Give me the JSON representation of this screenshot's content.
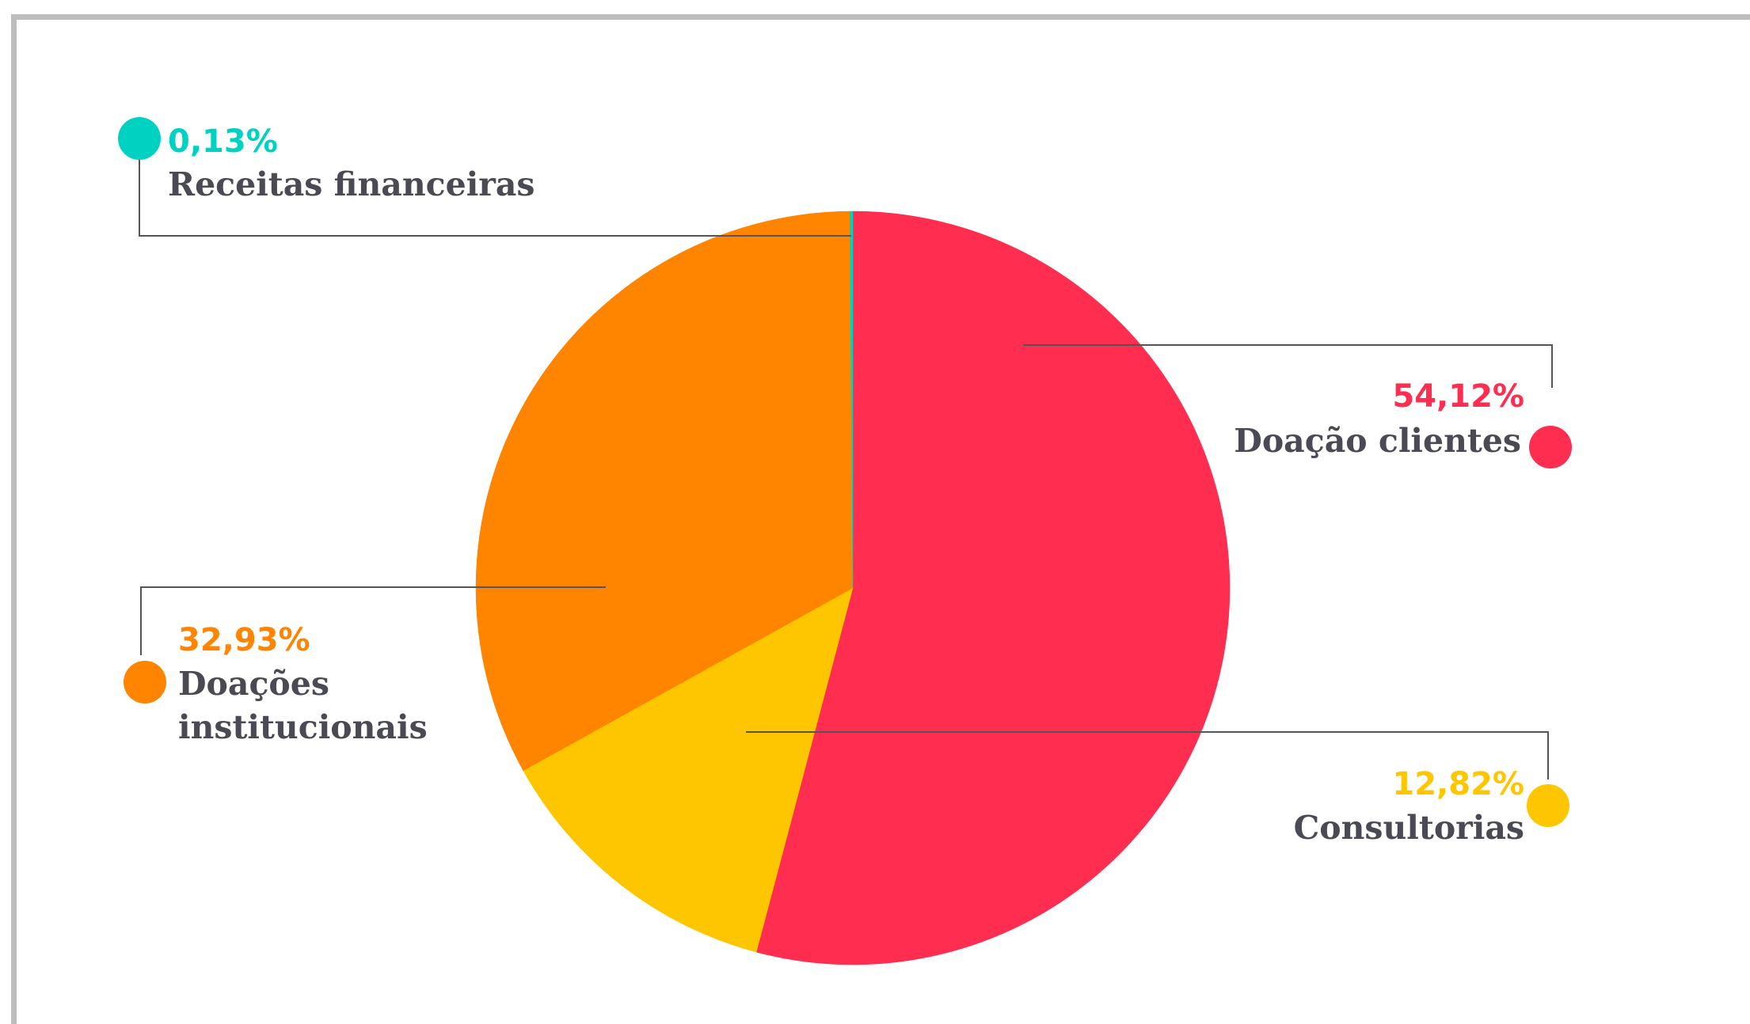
{
  "chart_data": {
    "type": "pie",
    "title": "",
    "slices": [
      {
        "label": "Doação clientes",
        "percent_label": "54,12%",
        "value": 54.12,
        "color": "#ff2d4f"
      },
      {
        "label": "Consultorias",
        "percent_label": "12,82%",
        "value": 12.82,
        "color": "#fec600"
      },
      {
        "label": "Doações institucionais",
        "label_lines": [
          "Doações",
          "institucionais"
        ],
        "percent_label": "32,93%",
        "value": 32.93,
        "color": "#ff8400"
      },
      {
        "label": "Receitas financeiras",
        "percent_label": "0,13%",
        "value": 0.13,
        "color": "#00d1c1"
      }
    ],
    "start": "12 o'clock",
    "direction": "clockwise",
    "legend": "callouts with leader lines"
  }
}
